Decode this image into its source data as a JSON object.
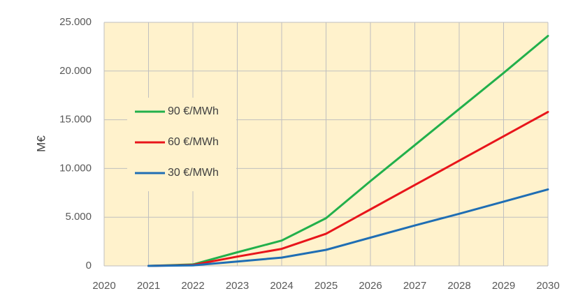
{
  "chart_data": {
    "type": "line",
    "title": "",
    "xlabel": "",
    "ylabel": "M€",
    "x": [
      2020,
      2021,
      2022,
      2023,
      2024,
      2025,
      2026,
      2027,
      2028,
      2029,
      2030
    ],
    "xlim": [
      2020,
      2030
    ],
    "ylim": [
      0,
      25000
    ],
    "y_ticks": [
      0,
      5000,
      10000,
      15000,
      20000,
      25000
    ],
    "y_tick_labels": [
      "0",
      "5.000",
      "10.000",
      "15.000",
      "20.000",
      "25.000"
    ],
    "x_tick_labels": [
      "2020",
      "2021",
      "2022",
      "2023",
      "2024",
      "2025",
      "2026",
      "2027",
      "2028",
      "2029",
      "2030"
    ],
    "grid": true,
    "plot_background": "#fff2cc",
    "legend_position": "left",
    "series": [
      {
        "name": "90 €/MWh",
        "color": "#22b04b",
        "x": [
          2021,
          2022,
          2023,
          2024,
          2025,
          2026,
          2027,
          2028,
          2029,
          2030
        ],
        "values": [
          0,
          150,
          1400,
          2600,
          4900,
          8700,
          12400,
          16100,
          19800,
          23600
        ]
      },
      {
        "name": "60 €/MWh",
        "color": "#e8151b",
        "x": [
          2021,
          2022,
          2023,
          2024,
          2025,
          2026,
          2027,
          2028,
          2029,
          2030
        ],
        "values": [
          0,
          100,
          950,
          1750,
          3300,
          5800,
          8300,
          10800,
          13300,
          15800
        ]
      },
      {
        "name": "30 €/MWh",
        "color": "#1f6eb4",
        "x": [
          2021,
          2022,
          2023,
          2024,
          2025,
          2026,
          2027,
          2028,
          2029,
          2030
        ],
        "values": [
          0,
          50,
          450,
          850,
          1650,
          2900,
          4150,
          5350,
          6600,
          7850
        ]
      }
    ]
  }
}
